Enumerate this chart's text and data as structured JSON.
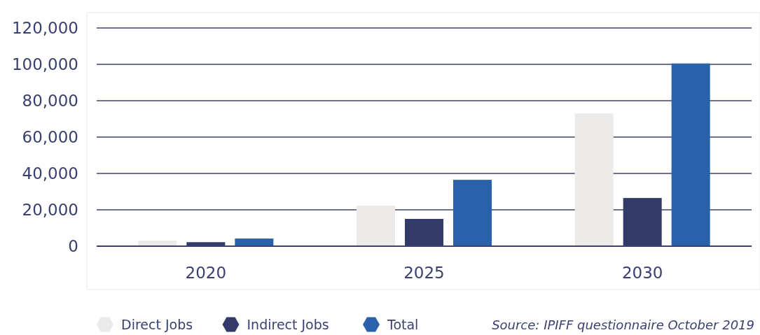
{
  "chart_data": {
    "type": "bar",
    "categories": [
      "2020",
      "2025",
      "2030"
    ],
    "series": [
      {
        "name": "Direct Jobs",
        "color": "#ebeae8",
        "values": [
          3000,
          22300,
          73000
        ]
      },
      {
        "name": "Indirect Jobs",
        "color": "#313a68",
        "values": [
          2200,
          15000,
          26500
        ]
      },
      {
        "name": "Total",
        "color": "#2962ab",
        "values": [
          4200,
          36500,
          100500
        ]
      }
    ],
    "ylim": [
      0,
      120000
    ],
    "yticks": [
      {
        "value": 0,
        "label": "0"
      },
      {
        "value": 20000,
        "label": "20,000"
      },
      {
        "value": 40000,
        "label": "40,000"
      },
      {
        "value": 60000,
        "label": "60,000"
      },
      {
        "value": 80000,
        "label": "80,000"
      },
      {
        "value": 100000,
        "label": "100,000"
      },
      {
        "value": 120000,
        "label": "120,000"
      }
    ],
    "grid": "y",
    "legend": "bottom",
    "annotations": [
      "Source: IPIFF questionnaire October 2019"
    ]
  }
}
